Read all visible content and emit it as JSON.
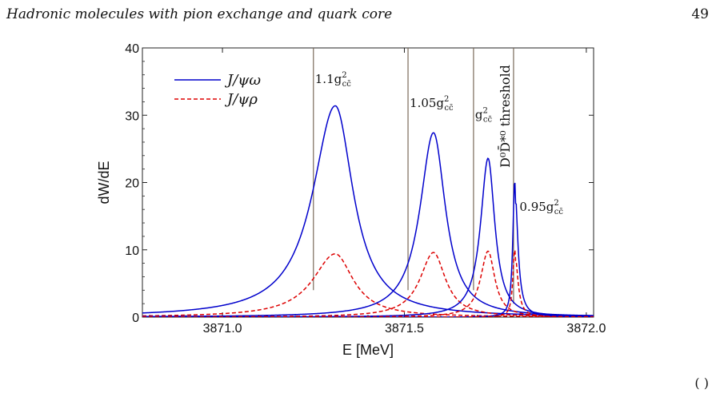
{
  "page": {
    "running_title": "Hadronic molecules with pion exchange and quark core",
    "page_number": "49",
    "footer_fragment": "(         )"
  },
  "chart_data": {
    "type": "line",
    "xlabel": "E [MeV]",
    "ylabel": "dW/dE",
    "xlim": [
      3870.78,
      3872.02
    ],
    "ylim": [
      0,
      40
    ],
    "x_ticks": [
      3871.0,
      3871.5,
      3872.0
    ],
    "x_tick_labels": [
      "3871.0",
      "3871.5",
      "3872.0"
    ],
    "y_ticks": [
      0,
      10,
      20,
      30,
      40
    ],
    "y_tick_labels": [
      "0",
      "10",
      "20",
      "30",
      "40"
    ],
    "legend": {
      "placement": "top-left",
      "entries": [
        {
          "label": "J/ψω",
          "color": "#0000cc",
          "style": "solid"
        },
        {
          "label": "J/ψρ",
          "color": "#dd0000",
          "style": "dashed"
        }
      ]
    },
    "threshold": {
      "x": 3871.8,
      "label": "D⁰D̄*⁰ threshold"
    },
    "vertical_markers": [
      3871.25,
      3871.51,
      3871.69,
      3871.8
    ],
    "curves": [
      {
        "coupling": "1.1g",
        "peak_x": 3871.31,
        "omega_peak": 31.4,
        "rho_peak": 9.4,
        "gamma_left": 0.15,
        "gamma_right": 0.12
      },
      {
        "coupling": "1.05g",
        "peak_x": 3871.58,
        "omega_peak": 27.4,
        "rho_peak": 9.6,
        "gamma_left": 0.09,
        "gamma_right": 0.08
      },
      {
        "coupling": "g",
        "peak_x": 3871.73,
        "omega_peak": 23.6,
        "rho_peak": 9.8,
        "gamma_left": 0.05,
        "gamma_right": 0.045
      },
      {
        "coupling": "0.95g",
        "peak_x": 3871.803,
        "omega_peak": 20.1,
        "rho_peak": 10.0,
        "gamma_left": 0.012,
        "gamma_right": 0.02
      }
    ],
    "labels": [
      {
        "base": "1.1g",
        "sup": "2",
        "sub": "cc̄",
        "x": 3871.25,
        "y": 34.8
      },
      {
        "base": "1.05g",
        "sup": "2",
        "sub": "cc̄",
        "x": 3871.51,
        "y": 31.2
      },
      {
        "base": "g",
        "sup": "2",
        "sub": "cc̄",
        "x": 3871.69,
        "y": 29.5
      },
      {
        "base": "0.95g",
        "sup": "2",
        "sub": "cc̄",
        "x": 3871.812,
        "y": 15.8
      }
    ],
    "colors": {
      "omega": "#0000cc",
      "rho": "#dd0000",
      "marker": "#7a6a5a"
    }
  }
}
